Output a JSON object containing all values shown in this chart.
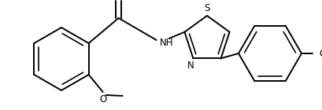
{
  "bg_color": "#ffffff",
  "line_color": "#000000",
  "line_width": 1.4,
  "font_size": 8.5,
  "figsize": [
    4.1,
    1.4
  ],
  "dpi": 100,
  "xlim": [
    0,
    410
  ],
  "ylim": [
    0,
    140
  ]
}
